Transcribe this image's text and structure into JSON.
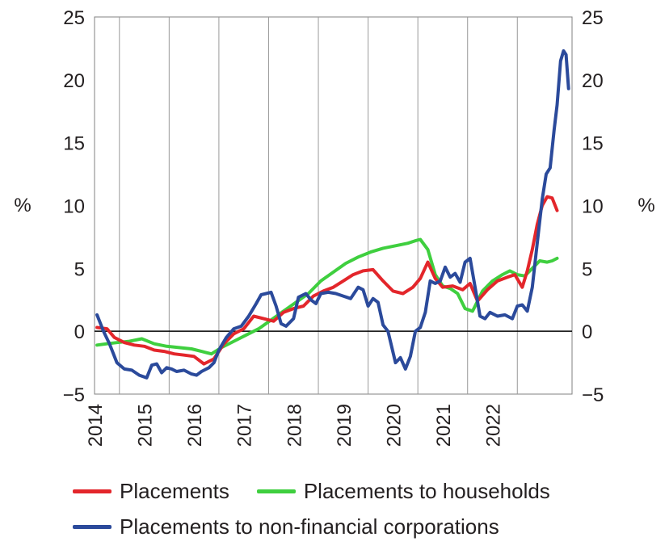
{
  "chart_data": {
    "type": "line",
    "y_unit_left": "%",
    "y_unit_right": "%",
    "ylim": [
      -5,
      25
    ],
    "yticks": [
      -5,
      0,
      5,
      10,
      15,
      20,
      25
    ],
    "ytick_labels": [
      "−5",
      "0",
      "5",
      "10",
      "15",
      "20",
      "25"
    ],
    "xlim": [
      2013.5,
      2022.85
    ],
    "year_labels": [
      "2014",
      "2015",
      "2016",
      "2017",
      "2018",
      "2019",
      "2020",
      "2021",
      "2022"
    ],
    "grid": "vertical lines at year boundaries",
    "zero_line": true,
    "legend_position": "bottom",
    "series": [
      {
        "name": "Placements",
        "color": "#e3262b",
        "points": [
          [
            2013.55,
            0.3
          ],
          [
            2013.75,
            0.2
          ],
          [
            2013.9,
            -0.5
          ],
          [
            2014.1,
            -0.9
          ],
          [
            2014.3,
            -1.1
          ],
          [
            2014.5,
            -1.2
          ],
          [
            2014.7,
            -1.5
          ],
          [
            2014.9,
            -1.6
          ],
          [
            2015.1,
            -1.8
          ],
          [
            2015.3,
            -1.9
          ],
          [
            2015.5,
            -2.0
          ],
          [
            2015.7,
            -2.6
          ],
          [
            2015.9,
            -2.2
          ],
          [
            2016.1,
            -1.0
          ],
          [
            2016.3,
            -0.2
          ],
          [
            2016.5,
            0.2
          ],
          [
            2016.7,
            1.2
          ],
          [
            2016.9,
            1.0
          ],
          [
            2017.1,
            0.8
          ],
          [
            2017.3,
            1.5
          ],
          [
            2017.5,
            1.8
          ],
          [
            2017.7,
            2.0
          ],
          [
            2017.9,
            2.8
          ],
          [
            2018.1,
            3.2
          ],
          [
            2018.3,
            3.5
          ],
          [
            2018.5,
            4.0
          ],
          [
            2018.7,
            4.5
          ],
          [
            2018.9,
            4.8
          ],
          [
            2019.1,
            4.9
          ],
          [
            2019.3,
            4.0
          ],
          [
            2019.5,
            3.2
          ],
          [
            2019.7,
            3.0
          ],
          [
            2019.9,
            3.5
          ],
          [
            2020.05,
            4.2
          ],
          [
            2020.2,
            5.5
          ],
          [
            2020.35,
            4.2
          ],
          [
            2020.5,
            3.5
          ],
          [
            2020.7,
            3.6
          ],
          [
            2020.9,
            3.3
          ],
          [
            2021.05,
            3.8
          ],
          [
            2021.2,
            2.4
          ],
          [
            2021.4,
            3.3
          ],
          [
            2021.6,
            4.0
          ],
          [
            2021.8,
            4.3
          ],
          [
            2021.95,
            4.5
          ],
          [
            2022.1,
            3.5
          ],
          [
            2022.2,
            4.8
          ],
          [
            2022.3,
            6.5
          ],
          [
            2022.4,
            8.5
          ],
          [
            2022.5,
            10.0
          ],
          [
            2022.6,
            10.7
          ],
          [
            2022.7,
            10.6
          ],
          [
            2022.8,
            9.6
          ]
        ]
      },
      {
        "name": "Placements to households",
        "color": "#3fcf3f",
        "points": [
          [
            2013.55,
            -1.1
          ],
          [
            2013.75,
            -1.0
          ],
          [
            2013.95,
            -0.9
          ],
          [
            2014.2,
            -0.8
          ],
          [
            2014.45,
            -0.6
          ],
          [
            2014.7,
            -1.0
          ],
          [
            2014.95,
            -1.2
          ],
          [
            2015.2,
            -1.3
          ],
          [
            2015.45,
            -1.4
          ],
          [
            2015.65,
            -1.6
          ],
          [
            2015.85,
            -1.8
          ],
          [
            2016.05,
            -1.3
          ],
          [
            2016.3,
            -0.8
          ],
          [
            2016.55,
            -0.3
          ],
          [
            2016.8,
            0.2
          ],
          [
            2017.05,
            0.9
          ],
          [
            2017.3,
            1.6
          ],
          [
            2017.55,
            2.3
          ],
          [
            2017.8,
            3.0
          ],
          [
            2018.05,
            4.0
          ],
          [
            2018.3,
            4.7
          ],
          [
            2018.55,
            5.4
          ],
          [
            2018.8,
            5.9
          ],
          [
            2019.05,
            6.3
          ],
          [
            2019.3,
            6.6
          ],
          [
            2019.55,
            6.8
          ],
          [
            2019.8,
            7.0
          ],
          [
            2019.95,
            7.2
          ],
          [
            2020.05,
            7.3
          ],
          [
            2020.2,
            6.5
          ],
          [
            2020.35,
            4.5
          ],
          [
            2020.5,
            3.6
          ],
          [
            2020.65,
            3.4
          ],
          [
            2020.8,
            3.0
          ],
          [
            2020.95,
            1.8
          ],
          [
            2021.1,
            1.6
          ],
          [
            2021.3,
            3.2
          ],
          [
            2021.5,
            4.0
          ],
          [
            2021.7,
            4.5
          ],
          [
            2021.85,
            4.8
          ],
          [
            2022.0,
            4.5
          ],
          [
            2022.15,
            4.4
          ],
          [
            2022.3,
            5.0
          ],
          [
            2022.45,
            5.6
          ],
          [
            2022.6,
            5.5
          ],
          [
            2022.7,
            5.6
          ],
          [
            2022.8,
            5.8
          ]
        ]
      },
      {
        "name": "Placements to non-financial corporations",
        "color": "#2b4a9b",
        "points": [
          [
            2013.55,
            1.3
          ],
          [
            2013.68,
            0.0
          ],
          [
            2013.8,
            -1.0
          ],
          [
            2013.95,
            -2.5
          ],
          [
            2014.1,
            -3.0
          ],
          [
            2014.25,
            -3.1
          ],
          [
            2014.4,
            -3.5
          ],
          [
            2014.55,
            -3.7
          ],
          [
            2014.65,
            -2.7
          ],
          [
            2014.75,
            -2.6
          ],
          [
            2014.85,
            -3.3
          ],
          [
            2014.95,
            -2.9
          ],
          [
            2015.05,
            -3.0
          ],
          [
            2015.15,
            -3.2
          ],
          [
            2015.3,
            -3.1
          ],
          [
            2015.45,
            -3.4
          ],
          [
            2015.55,
            -3.5
          ],
          [
            2015.65,
            -3.2
          ],
          [
            2015.8,
            -2.9
          ],
          [
            2015.9,
            -2.5
          ],
          [
            2016.0,
            -1.5
          ],
          [
            2016.15,
            -0.5
          ],
          [
            2016.3,
            0.2
          ],
          [
            2016.45,
            0.4
          ],
          [
            2016.6,
            1.2
          ],
          [
            2016.75,
            2.2
          ],
          [
            2016.85,
            2.9
          ],
          [
            2016.95,
            3.0
          ],
          [
            2017.05,
            3.1
          ],
          [
            2017.15,
            2.0
          ],
          [
            2017.25,
            0.6
          ],
          [
            2017.35,
            0.4
          ],
          [
            2017.5,
            1.0
          ],
          [
            2017.6,
            2.7
          ],
          [
            2017.75,
            3.0
          ],
          [
            2017.85,
            2.5
          ],
          [
            2017.95,
            2.2
          ],
          [
            2018.05,
            3.0
          ],
          [
            2018.2,
            3.1
          ],
          [
            2018.35,
            3.0
          ],
          [
            2018.5,
            2.8
          ],
          [
            2018.65,
            2.6
          ],
          [
            2018.8,
            3.5
          ],
          [
            2018.9,
            3.3
          ],
          [
            2019.0,
            2.0
          ],
          [
            2019.1,
            2.6
          ],
          [
            2019.2,
            2.3
          ],
          [
            2019.3,
            0.5
          ],
          [
            2019.4,
            0.0
          ],
          [
            2019.55,
            -2.5
          ],
          [
            2019.65,
            -2.1
          ],
          [
            2019.75,
            -3.0
          ],
          [
            2019.85,
            -2.0
          ],
          [
            2019.95,
            0.0
          ],
          [
            2020.05,
            0.3
          ],
          [
            2020.15,
            1.5
          ],
          [
            2020.25,
            4.0
          ],
          [
            2020.35,
            3.8
          ],
          [
            2020.45,
            4.0
          ],
          [
            2020.55,
            5.1
          ],
          [
            2020.65,
            4.3
          ],
          [
            2020.75,
            4.6
          ],
          [
            2020.85,
            3.9
          ],
          [
            2020.95,
            5.5
          ],
          [
            2021.05,
            5.8
          ],
          [
            2021.15,
            3.5
          ],
          [
            2021.25,
            1.2
          ],
          [
            2021.35,
            1.0
          ],
          [
            2021.45,
            1.5
          ],
          [
            2021.6,
            1.2
          ],
          [
            2021.75,
            1.3
          ],
          [
            2021.9,
            1.0
          ],
          [
            2022.0,
            2.0
          ],
          [
            2022.1,
            2.1
          ],
          [
            2022.2,
            1.6
          ],
          [
            2022.3,
            3.5
          ],
          [
            2022.4,
            7.0
          ],
          [
            2022.5,
            10.5
          ],
          [
            2022.58,
            12.5
          ],
          [
            2022.66,
            13.0
          ],
          [
            2022.74,
            16.0
          ],
          [
            2022.8,
            18.0
          ],
          [
            2022.87,
            21.5
          ],
          [
            2022.93,
            22.3
          ],
          [
            2022.98,
            22.0
          ],
          [
            2023.03,
            19.3
          ]
        ]
      }
    ]
  }
}
